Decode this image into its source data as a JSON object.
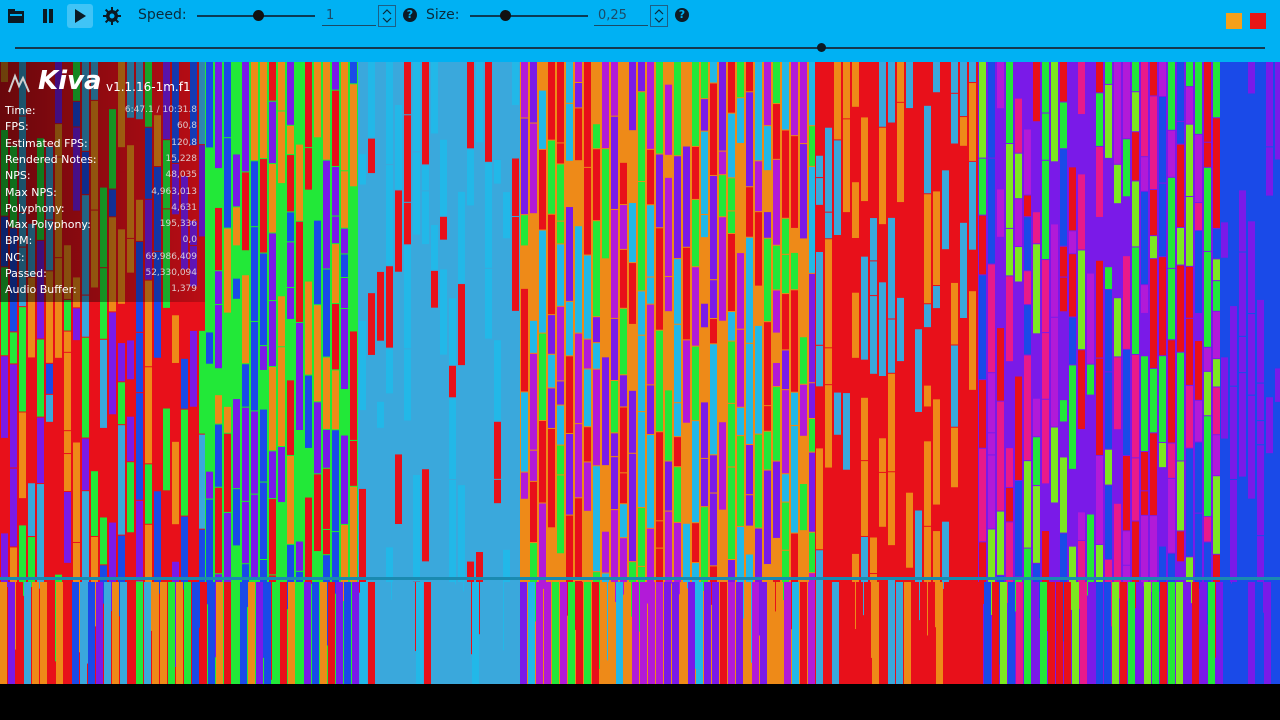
{
  "toolbar": {
    "speed_label": "Speed:",
    "speed_value": "1",
    "speed_fraction": 0.52,
    "size_label": "Size:",
    "size_value": "0,25",
    "size_fraction": 0.3,
    "help_glyph": "?",
    "accent": "#00b1f3"
  },
  "playback": {
    "seek_fraction": 0.645
  },
  "overlay": {
    "app_name": "Kiva",
    "version": "v1.1.16-1m.f1",
    "stats": [
      {
        "label": "Time:",
        "value": "6:47.1 / 10:31.8"
      },
      {
        "label": "FPS:",
        "value": "60,8"
      },
      {
        "label": "Estimated FPS:",
        "value": "120,8"
      },
      {
        "label": "Rendered Notes:",
        "value": "15,228"
      },
      {
        "label": "NPS:",
        "value": "48,035"
      },
      {
        "label": "Max NPS:",
        "value": "4,963,013"
      },
      {
        "label": "Polyphony:",
        "value": "4,631"
      },
      {
        "label": "Max Polyphony:",
        "value": "195,336"
      },
      {
        "label": "BPM:",
        "value": "0,0"
      },
      {
        "label": "NC:",
        "value": "69,986,409"
      },
      {
        "label": "Passed:",
        "value": "52,330,094"
      },
      {
        "label": "Audio Buffer:",
        "value": "1,379"
      }
    ]
  },
  "colors": {
    "red": "#e8101a",
    "orange": "#ee8a18",
    "green": "#22e838",
    "lime": "#7ce820",
    "blue": "#1a4ae8",
    "purple": "#7a1ae8",
    "violet": "#b21ad8",
    "cyan": "#22b8e8",
    "skyblue": "#3aa8dc",
    "magenta": "#e81a8a",
    "yellow": "#c8e020"
  },
  "icons": {
    "open": "folder-open-icon",
    "pause": "pause-icon",
    "play": "play-icon",
    "settings": "gear-icon",
    "help": "help-icon"
  }
}
